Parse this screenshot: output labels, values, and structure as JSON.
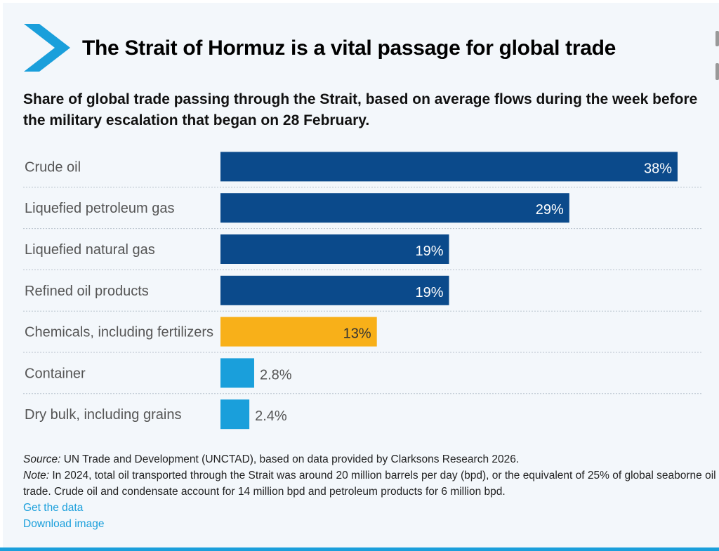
{
  "header": {
    "title": "The Strait of Hormuz is a vital passage for global trade",
    "subtitle": "Share of global trade passing through the Strait, based on average flows during the week before the military escalation that began on 28 February."
  },
  "chart_data": {
    "type": "bar",
    "orientation": "horizontal",
    "categories": [
      "Crude oil",
      "Liquefied petroleum gas",
      "Liquefied natural gas",
      "Refined oil products",
      "Chemicals, including fertilizers",
      "Container",
      "Dry bulk, including grains"
    ],
    "values": [
      38,
      29,
      19,
      19,
      13,
      2.8,
      2.4
    ],
    "labels": [
      "38%",
      "29%",
      "19%",
      "19%",
      "13%",
      "2.8%",
      "2.4%"
    ],
    "colors": [
      "#0b4a8b",
      "#0b4a8b",
      "#0b4a8b",
      "#0b4a8b",
      "#f8b019",
      "#1a9fdb",
      "#1a9fdb"
    ],
    "xlim": [
      0,
      38
    ],
    "grid": false,
    "legend": "none",
    "unit": "%"
  },
  "footer": {
    "source_label": "Source:",
    "source": " UN Trade and Development (UNCTAD), based on data provided by Clarksons Research 2026.",
    "note_label": "Note:",
    "note": " In 2024, total oil transported through the Strait was around 20 million barrels per day (bpd), or the equivalent of 25% of global seaborne oil trade. Crude oil and condensate account for 14 million bpd and petroleum products for 6 million bpd.",
    "get_data": "Get the data",
    "download": "Download image"
  },
  "colors": {
    "accent": "#1a9fdb",
    "background": "#f3f7fb"
  }
}
